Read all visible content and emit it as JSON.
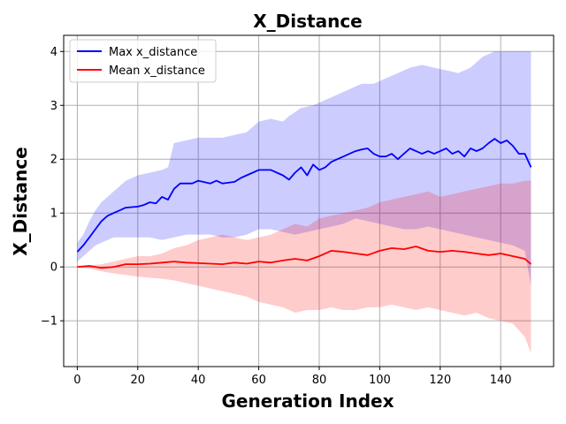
{
  "chart_data": {
    "type": "line",
    "title": "X_Distance",
    "xlabel": "Generation Index",
    "ylabel": "X_Distance",
    "xlim": [
      -4.5,
      157.5
    ],
    "ylim": [
      -1.85,
      4.3
    ],
    "xticks": [
      "0",
      "20",
      "40",
      "60",
      "80",
      "100",
      "120",
      "140"
    ],
    "yticks": [
      "−1",
      "0",
      "1",
      "2",
      "3",
      "4"
    ],
    "grid": true,
    "legend_position": "upper-left",
    "series": [
      {
        "name": "Max x_distance",
        "color": "#0000ff",
        "band_color": "#0000ff",
        "points": [
          [
            0,
            0.28
          ],
          [
            2,
            0.4
          ],
          [
            4,
            0.55
          ],
          [
            6,
            0.7
          ],
          [
            8,
            0.85
          ],
          [
            10,
            0.95
          ],
          [
            12,
            1.0
          ],
          [
            14,
            1.05
          ],
          [
            16,
            1.1
          ],
          [
            20,
            1.12
          ],
          [
            22,
            1.15
          ],
          [
            24,
            1.2
          ],
          [
            26,
            1.18
          ],
          [
            28,
            1.3
          ],
          [
            30,
            1.25
          ],
          [
            32,
            1.45
          ],
          [
            34,
            1.55
          ],
          [
            38,
            1.55
          ],
          [
            40,
            1.6
          ],
          [
            44,
            1.55
          ],
          [
            46,
            1.6
          ],
          [
            48,
            1.55
          ],
          [
            52,
            1.58
          ],
          [
            54,
            1.65
          ],
          [
            56,
            1.7
          ],
          [
            58,
            1.75
          ],
          [
            60,
            1.8
          ],
          [
            64,
            1.8
          ],
          [
            66,
            1.75
          ],
          [
            68,
            1.7
          ],
          [
            70,
            1.62
          ],
          [
            72,
            1.75
          ],
          [
            74,
            1.85
          ],
          [
            76,
            1.7
          ],
          [
            78,
            1.9
          ],
          [
            80,
            1.8
          ],
          [
            82,
            1.85
          ],
          [
            84,
            1.95
          ],
          [
            86,
            2.0
          ],
          [
            88,
            2.05
          ],
          [
            90,
            2.1
          ],
          [
            92,
            2.15
          ],
          [
            94,
            2.18
          ],
          [
            96,
            2.2
          ],
          [
            98,
            2.1
          ],
          [
            100,
            2.05
          ],
          [
            102,
            2.05
          ],
          [
            104,
            2.1
          ],
          [
            106,
            2.0
          ],
          [
            108,
            2.1
          ],
          [
            110,
            2.2
          ],
          [
            112,
            2.15
          ],
          [
            114,
            2.1
          ],
          [
            116,
            2.15
          ],
          [
            118,
            2.1
          ],
          [
            120,
            2.15
          ],
          [
            122,
            2.2
          ],
          [
            124,
            2.1
          ],
          [
            126,
            2.15
          ],
          [
            128,
            2.05
          ],
          [
            130,
            2.2
          ],
          [
            132,
            2.15
          ],
          [
            134,
            2.2
          ],
          [
            136,
            2.3
          ],
          [
            138,
            2.38
          ],
          [
            140,
            2.3
          ],
          [
            142,
            2.35
          ],
          [
            144,
            2.25
          ],
          [
            146,
            2.1
          ],
          [
            148,
            2.1
          ],
          [
            150,
            1.85
          ]
        ],
        "band_upper": [
          [
            0,
            0.45
          ],
          [
            2,
            0.6
          ],
          [
            4,
            0.85
          ],
          [
            6,
            1.05
          ],
          [
            8,
            1.2
          ],
          [
            10,
            1.3
          ],
          [
            12,
            1.4
          ],
          [
            14,
            1.5
          ],
          [
            16,
            1.6
          ],
          [
            20,
            1.7
          ],
          [
            24,
            1.75
          ],
          [
            28,
            1.8
          ],
          [
            30,
            1.85
          ],
          [
            32,
            2.3
          ],
          [
            40,
            2.4
          ],
          [
            48,
            2.4
          ],
          [
            52,
            2.45
          ],
          [
            56,
            2.5
          ],
          [
            60,
            2.7
          ],
          [
            64,
            2.75
          ],
          [
            68,
            2.7
          ],
          [
            70,
            2.8
          ],
          [
            74,
            2.95
          ],
          [
            78,
            3.0
          ],
          [
            82,
            3.1
          ],
          [
            86,
            3.2
          ],
          [
            90,
            3.3
          ],
          [
            94,
            3.4
          ],
          [
            98,
            3.4
          ],
          [
            102,
            3.5
          ],
          [
            106,
            3.6
          ],
          [
            110,
            3.7
          ],
          [
            114,
            3.75
          ],
          [
            118,
            3.7
          ],
          [
            122,
            3.65
          ],
          [
            126,
            3.6
          ],
          [
            130,
            3.7
          ],
          [
            134,
            3.9
          ],
          [
            138,
            4.0
          ],
          [
            142,
            4.0
          ],
          [
            146,
            4.0
          ],
          [
            150,
            4.0
          ]
        ],
        "band_lower": [
          [
            0,
            0.1
          ],
          [
            2,
            0.2
          ],
          [
            4,
            0.3
          ],
          [
            6,
            0.4
          ],
          [
            8,
            0.45
          ],
          [
            10,
            0.5
          ],
          [
            12,
            0.55
          ],
          [
            16,
            0.55
          ],
          [
            20,
            0.55
          ],
          [
            24,
            0.55
          ],
          [
            28,
            0.5
          ],
          [
            32,
            0.55
          ],
          [
            36,
            0.6
          ],
          [
            40,
            0.6
          ],
          [
            44,
            0.6
          ],
          [
            48,
            0.55
          ],
          [
            52,
            0.55
          ],
          [
            56,
            0.6
          ],
          [
            60,
            0.7
          ],
          [
            64,
            0.7
          ],
          [
            68,
            0.65
          ],
          [
            72,
            0.6
          ],
          [
            76,
            0.65
          ],
          [
            80,
            0.7
          ],
          [
            84,
            0.75
          ],
          [
            88,
            0.8
          ],
          [
            92,
            0.9
          ],
          [
            96,
            0.85
          ],
          [
            100,
            0.8
          ],
          [
            104,
            0.75
          ],
          [
            108,
            0.7
          ],
          [
            112,
            0.7
          ],
          [
            116,
            0.75
          ],
          [
            120,
            0.7
          ],
          [
            124,
            0.65
          ],
          [
            128,
            0.6
          ],
          [
            132,
            0.55
          ],
          [
            136,
            0.5
          ],
          [
            140,
            0.45
          ],
          [
            144,
            0.4
          ],
          [
            148,
            0.3
          ],
          [
            150,
            -0.35
          ]
        ]
      },
      {
        "name": "Mean x_distance",
        "color": "#ff0000",
        "band_color": "#ff0000",
        "points": [
          [
            0,
            0.0
          ],
          [
            4,
            0.02
          ],
          [
            8,
            -0.02
          ],
          [
            12,
            0.0
          ],
          [
            16,
            0.05
          ],
          [
            20,
            0.05
          ],
          [
            24,
            0.06
          ],
          [
            28,
            0.08
          ],
          [
            32,
            0.1
          ],
          [
            36,
            0.08
          ],
          [
            40,
            0.07
          ],
          [
            44,
            0.06
          ],
          [
            48,
            0.05
          ],
          [
            52,
            0.08
          ],
          [
            56,
            0.06
          ],
          [
            60,
            0.1
          ],
          [
            64,
            0.08
          ],
          [
            68,
            0.12
          ],
          [
            72,
            0.15
          ],
          [
            76,
            0.12
          ],
          [
            80,
            0.2
          ],
          [
            84,
            0.3
          ],
          [
            88,
            0.28
          ],
          [
            92,
            0.25
          ],
          [
            96,
            0.22
          ],
          [
            100,
            0.3
          ],
          [
            104,
            0.35
          ],
          [
            108,
            0.33
          ],
          [
            112,
            0.38
          ],
          [
            116,
            0.3
          ],
          [
            120,
            0.28
          ],
          [
            124,
            0.3
          ],
          [
            128,
            0.28
          ],
          [
            132,
            0.25
          ],
          [
            136,
            0.22
          ],
          [
            140,
            0.25
          ],
          [
            144,
            0.2
          ],
          [
            148,
            0.15
          ],
          [
            150,
            0.05
          ]
        ],
        "band_upper": [
          [
            0,
            0.0
          ],
          [
            4,
            0.03
          ],
          [
            8,
            0.05
          ],
          [
            12,
            0.1
          ],
          [
            16,
            0.15
          ],
          [
            20,
            0.2
          ],
          [
            24,
            0.2
          ],
          [
            28,
            0.25
          ],
          [
            32,
            0.35
          ],
          [
            36,
            0.4
          ],
          [
            40,
            0.5
          ],
          [
            44,
            0.55
          ],
          [
            48,
            0.6
          ],
          [
            52,
            0.55
          ],
          [
            56,
            0.5
          ],
          [
            60,
            0.55
          ],
          [
            64,
            0.6
          ],
          [
            68,
            0.7
          ],
          [
            72,
            0.8
          ],
          [
            76,
            0.75
          ],
          [
            80,
            0.9
          ],
          [
            84,
            0.95
          ],
          [
            88,
            1.0
          ],
          [
            92,
            1.05
          ],
          [
            96,
            1.1
          ],
          [
            100,
            1.2
          ],
          [
            104,
            1.25
          ],
          [
            108,
            1.3
          ],
          [
            112,
            1.35
          ],
          [
            116,
            1.4
          ],
          [
            120,
            1.3
          ],
          [
            124,
            1.35
          ],
          [
            128,
            1.4
          ],
          [
            132,
            1.45
          ],
          [
            136,
            1.5
          ],
          [
            140,
            1.55
          ],
          [
            144,
            1.55
          ],
          [
            148,
            1.6
          ],
          [
            150,
            1.6
          ]
        ],
        "band_lower": [
          [
            0,
            0.0
          ],
          [
            4,
            -0.03
          ],
          [
            8,
            -0.08
          ],
          [
            12,
            -0.12
          ],
          [
            16,
            -0.15
          ],
          [
            20,
            -0.18
          ],
          [
            24,
            -0.2
          ],
          [
            28,
            -0.22
          ],
          [
            32,
            -0.25
          ],
          [
            36,
            -0.3
          ],
          [
            40,
            -0.35
          ],
          [
            44,
            -0.4
          ],
          [
            48,
            -0.45
          ],
          [
            52,
            -0.5
          ],
          [
            56,
            -0.55
          ],
          [
            60,
            -0.65
          ],
          [
            64,
            -0.7
          ],
          [
            68,
            -0.75
          ],
          [
            72,
            -0.85
          ],
          [
            76,
            -0.8
          ],
          [
            80,
            -0.8
          ],
          [
            84,
            -0.75
          ],
          [
            88,
            -0.8
          ],
          [
            92,
            -0.8
          ],
          [
            96,
            -0.75
          ],
          [
            100,
            -0.75
          ],
          [
            104,
            -0.7
          ],
          [
            108,
            -0.75
          ],
          [
            112,
            -0.8
          ],
          [
            116,
            -0.75
          ],
          [
            120,
            -0.8
          ],
          [
            124,
            -0.85
          ],
          [
            128,
            -0.9
          ],
          [
            132,
            -0.85
          ],
          [
            136,
            -0.95
          ],
          [
            140,
            -1.0
          ],
          [
            144,
            -1.05
          ],
          [
            148,
            -1.3
          ],
          [
            150,
            -1.6
          ]
        ]
      }
    ]
  }
}
